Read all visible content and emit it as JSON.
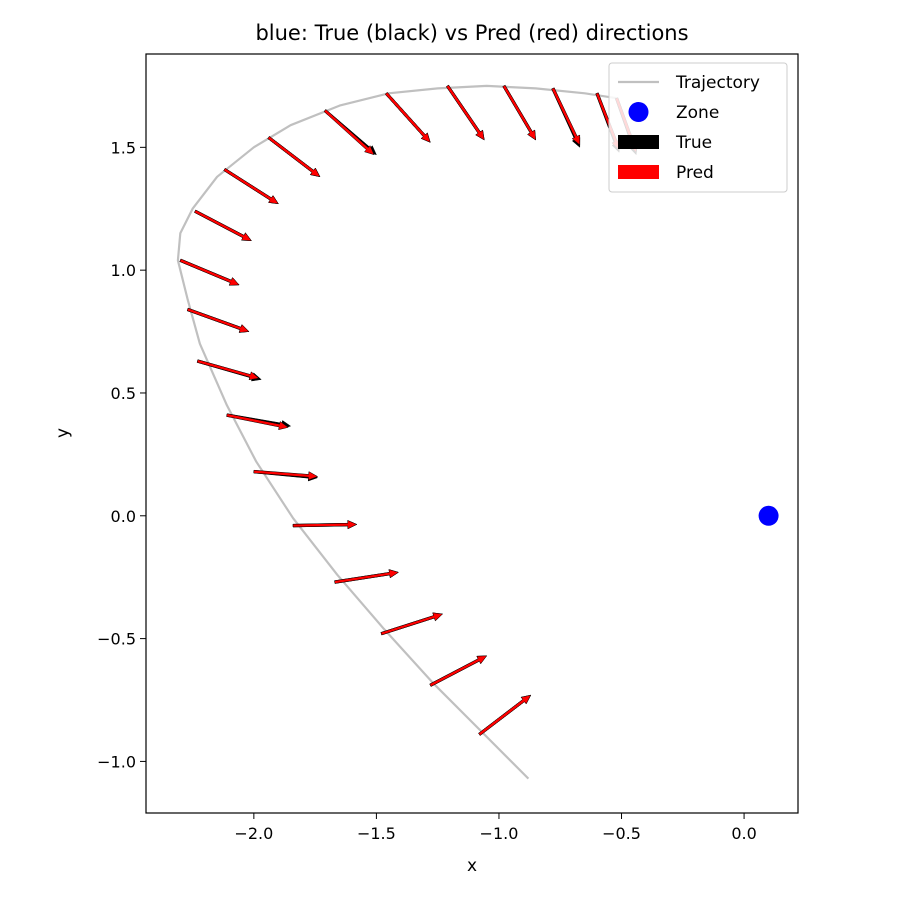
{
  "chart_data": {
    "type": "quiver",
    "title": "blue: True (black) vs Pred (red) directions",
    "xlabel": "x",
    "ylabel": "y",
    "xlim": [
      -2.44,
      0.22
    ],
    "ylim": [
      -1.21,
      1.88
    ],
    "xticks": [
      -2.0,
      -1.5,
      -1.0,
      -0.5,
      0.0
    ],
    "xtick_labels": [
      "−2.0",
      "−1.5",
      "−1.0",
      "−0.5",
      "0.0"
    ],
    "yticks": [
      -1.0,
      -0.5,
      0.0,
      0.5,
      1.0,
      1.5
    ],
    "ytick_labels": [
      "−1.0",
      "−0.5",
      "0.0",
      "0.5",
      "1.0",
      "1.5"
    ],
    "grid": false,
    "legend_position": "top-right",
    "legend": [
      {
        "label": "Trajectory",
        "kind": "line",
        "color": "#c0c0c0"
      },
      {
        "label": "Zone",
        "kind": "marker",
        "color": "#0000ff"
      },
      {
        "label": "True",
        "kind": "patch",
        "color": "#000000"
      },
      {
        "label": "Pred",
        "kind": "patch",
        "color": "#ff0000"
      }
    ],
    "trajectory": {
      "name": "Trajectory",
      "color": "#c0c0c0",
      "x": [
        -0.88,
        -1.07,
        -1.27,
        -1.47,
        -1.66,
        -1.84,
        -1.99,
        -2.11,
        -2.22,
        -2.27,
        -2.31,
        -2.3,
        -2.25,
        -2.15,
        -2.0,
        -1.85,
        -1.65,
        -1.45,
        -1.25,
        -1.05,
        -0.85,
        -0.65,
        -0.52
      ],
      "y": [
        -1.07,
        -0.88,
        -0.68,
        -0.46,
        -0.24,
        -0.01,
        0.22,
        0.45,
        0.7,
        0.88,
        1.04,
        1.15,
        1.25,
        1.38,
        1.5,
        1.59,
        1.67,
        1.72,
        1.74,
        1.75,
        1.74,
        1.72,
        1.7
      ]
    },
    "zone": {
      "name": "Zone",
      "x": 0.1,
      "y": 0.0,
      "color": "#0000ff"
    },
    "arrows": {
      "true_color": "#000000",
      "pred_color": "#ff0000",
      "points": [
        {
          "x": -1.08,
          "y": -0.89,
          "tu": 0.21,
          "tv": 0.16,
          "pu": 0.21,
          "pv": 0.16
        },
        {
          "x": -1.28,
          "y": -0.69,
          "tu": 0.23,
          "tv": 0.12,
          "pu": 0.23,
          "pv": 0.12
        },
        {
          "x": -1.48,
          "y": -0.48,
          "tu": 0.25,
          "tv": 0.08,
          "pu": 0.25,
          "pv": 0.08
        },
        {
          "x": -1.67,
          "y": -0.27,
          "tu": 0.26,
          "tv": 0.04,
          "pu": 0.26,
          "pv": 0.04
        },
        {
          "x": -1.84,
          "y": -0.04,
          "tu": 0.26,
          "tv": 0.005,
          "pu": 0.26,
          "pv": 0.005
        },
        {
          "x": -2.0,
          "y": 0.18,
          "tu": 0.26,
          "tv": -0.025,
          "pu": 0.26,
          "pv": -0.02
        },
        {
          "x": -2.11,
          "y": 0.41,
          "tu": 0.26,
          "tv": -0.045,
          "pu": 0.25,
          "pv": -0.05
        },
        {
          "x": -2.23,
          "y": 0.63,
          "tu": 0.26,
          "tv": -0.075,
          "pu": 0.25,
          "pv": -0.07
        },
        {
          "x": -2.27,
          "y": 0.84,
          "tu": 0.25,
          "tv": -0.09,
          "pu": 0.25,
          "pv": -0.09
        },
        {
          "x": -2.3,
          "y": 1.04,
          "tu": 0.24,
          "tv": -0.1,
          "pu": 0.24,
          "pv": -0.1
        },
        {
          "x": -2.24,
          "y": 1.24,
          "tu": 0.23,
          "tv": -0.12,
          "pu": 0.23,
          "pv": -0.12
        },
        {
          "x": -2.12,
          "y": 1.41,
          "tu": 0.22,
          "tv": -0.14,
          "pu": 0.22,
          "pv": -0.14
        },
        {
          "x": -1.94,
          "y": 1.54,
          "tu": 0.21,
          "tv": -0.16,
          "pu": 0.21,
          "pv": -0.16
        },
        {
          "x": -1.71,
          "y": 1.65,
          "tu": 0.21,
          "tv": -0.18,
          "pu": 0.2,
          "pv": -0.18
        },
        {
          "x": -1.46,
          "y": 1.72,
          "tu": 0.18,
          "tv": -0.2,
          "pu": 0.18,
          "pv": -0.2
        },
        {
          "x": -1.21,
          "y": 1.75,
          "tu": 0.15,
          "tv": -0.22,
          "pu": 0.15,
          "pv": -0.22
        },
        {
          "x": -0.98,
          "y": 1.75,
          "tu": 0.13,
          "tv": -0.22,
          "pu": 0.13,
          "pv": -0.22
        },
        {
          "x": -0.78,
          "y": 1.74,
          "tu": 0.11,
          "tv": -0.24,
          "pu": 0.11,
          "pv": -0.23
        },
        {
          "x": -0.6,
          "y": 1.72,
          "tu": 0.09,
          "tv": -0.24,
          "pu": 0.09,
          "pv": -0.23
        },
        {
          "x": -0.52,
          "y": 1.7,
          "tu": 0.08,
          "tv": -0.23,
          "pu": 0.08,
          "pv": -0.22
        }
      ]
    }
  }
}
